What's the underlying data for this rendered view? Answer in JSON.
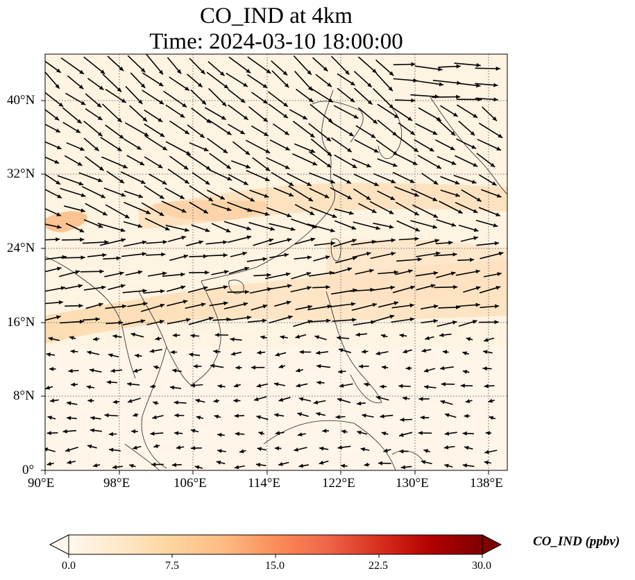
{
  "title": {
    "line1": "CO_IND at 4km",
    "line2": "Time: 2024-03-10 18:00:00"
  },
  "axes": {
    "x_ticks": [
      "90°E",
      "98°E",
      "106°E",
      "114°E",
      "122°E",
      "130°E",
      "138°E"
    ],
    "y_ticks": [
      "0°",
      "8°N",
      "16°N",
      "24°N",
      "32°N",
      "40°N"
    ],
    "lon_range": [
      90,
      140
    ],
    "lat_range": [
      0,
      45
    ],
    "gridlines": "dotted"
  },
  "colorbar": {
    "label": "CO_IND (ppbv)",
    "ticks": [
      "0.0",
      "7.5",
      "15.0",
      "22.5",
      "30.0"
    ],
    "range": [
      0,
      30
    ],
    "extend": "both",
    "colormap": "OrRd",
    "colors": [
      "#fff7ec",
      "#fee8c8",
      "#fdd49e",
      "#fdbb84",
      "#fc8d59",
      "#ef6548",
      "#d7301f",
      "#b30000",
      "#7f0000"
    ]
  },
  "wind_vectors": "black arrows"
}
